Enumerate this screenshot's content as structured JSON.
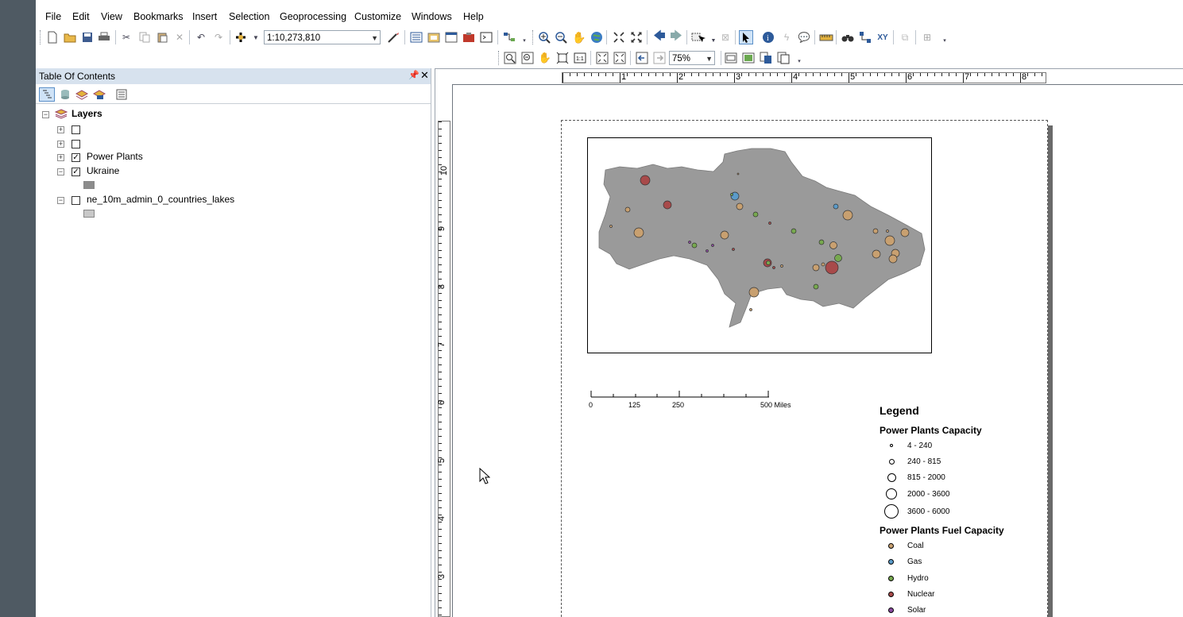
{
  "menubar": [
    "File",
    "Edit",
    "View",
    "Bookmarks",
    "Insert",
    "Selection",
    "Geoprocessing",
    "Customize",
    "Windows",
    "Help"
  ],
  "toolbar": {
    "scale": "1:10,273,810",
    "zoom": "75%"
  },
  "toc": {
    "title": "Table Of Contents",
    "root_label": "Layers",
    "layers": [
      {
        "label": "",
        "checked": false,
        "expanded": false
      },
      {
        "label": "",
        "checked": false,
        "expanded": false
      },
      {
        "label": "Power Plants",
        "checked": true,
        "expanded": false
      },
      {
        "label": "Ukraine",
        "checked": true,
        "expanded": true,
        "swatch": "#8c8c8c"
      },
      {
        "label": "ne_10m_admin_0_countries_lakes",
        "checked": false,
        "expanded": true,
        "swatch": "#c8c8c8"
      }
    ]
  },
  "rulers": {
    "horizontal": [
      "1",
      "2",
      "3",
      "4",
      "5",
      "6",
      "7",
      "8"
    ],
    "vertical": [
      "10",
      "9",
      "8",
      "7",
      "6",
      "5",
      "4",
      "3"
    ]
  },
  "scalebar": {
    "labels": [
      "0",
      "125",
      "250",
      "500 Miles"
    ]
  },
  "legend": {
    "title": "Legend",
    "capacity_title": "Power Plants Capacity",
    "capacity_classes": [
      "4 - 240",
      "240 - 815",
      "815 - 2000",
      "2000 - 3600",
      "3600 - 6000"
    ],
    "fuel_title": "Power Plants Fuel Capacity",
    "fuels": [
      {
        "label": "Coal",
        "color": "#c8a070"
      },
      {
        "label": "Gas",
        "color": "#5b9bc9"
      },
      {
        "label": "Hydro",
        "color": "#77a94f"
      },
      {
        "label": "Nuclear",
        "color": "#a84a4a"
      },
      {
        "label": "Solar",
        "color": "#8a4aa0"
      }
    ]
  },
  "map": {
    "country_fill": "#9a9a9a"
  }
}
